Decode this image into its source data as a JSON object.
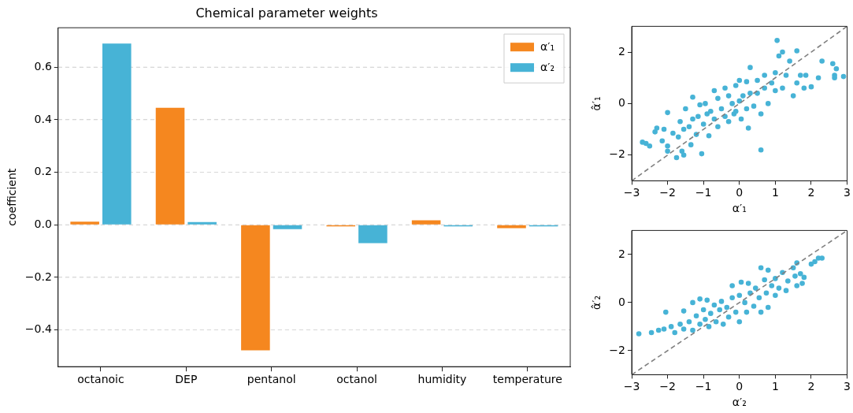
{
  "chart_data": [
    {
      "type": "bar",
      "title": "Chemical parameter weights",
      "ylabel": "coefficient",
      "categories": [
        "octanoic",
        "DEP",
        "pentanol",
        "octanol",
        "humidity",
        "temperature"
      ],
      "series": [
        {
          "name": "α′₁",
          "color": "#f5871f",
          "values": [
            0.012,
            0.445,
            -0.478,
            -0.002,
            0.017,
            -0.013
          ]
        },
        {
          "name": "α′₂",
          "color": "#47b3d6",
          "values": [
            0.69,
            0.01,
            -0.017,
            -0.07,
            -0.002,
            -0.005
          ]
        }
      ],
      "ylim": [
        -0.54,
        0.75
      ],
      "yticks": [
        {
          "value": -0.4,
          "label": "−0.4"
        },
        {
          "value": -0.2,
          "label": "−0.2"
        },
        {
          "value": 0,
          "label": "0.0"
        },
        {
          "value": 0.2,
          "label": "0.2"
        },
        {
          "value": 0.4,
          "label": "0.4"
        },
        {
          "value": 0.6,
          "label": "0.6"
        }
      ],
      "grid": "y",
      "legend": "top right"
    },
    {
      "type": "scatter",
      "xlabel": "α′₁",
      "ylabel": "α̂′₁",
      "marker": "circle",
      "series": [
        {
          "type": "scatter",
          "color": "#47b3d6",
          "x": [
            -2.7,
            -2.6,
            -2.5,
            -2.35,
            -2.3,
            -2.15,
            -2.1,
            -2.0,
            -2.0,
            -2.0,
            -1.85,
            -1.75,
            -1.7,
            -1.65,
            -1.6,
            -1.55,
            -1.55,
            -1.5,
            -1.4,
            -1.35,
            -1.3,
            -1.3,
            -1.2,
            -1.15,
            -1.1,
            -1.05,
            -1.0,
            -0.95,
            -0.9,
            -0.85,
            -0.8,
            -0.7,
            -0.7,
            -0.6,
            -0.6,
            -0.5,
            -0.4,
            -0.4,
            -0.3,
            -0.3,
            -0.2,
            -0.15,
            -0.1,
            -0.1,
            0.0,
            0.0,
            0.05,
            0.1,
            0.2,
            0.2,
            0.25,
            0.3,
            0.3,
            0.4,
            0.5,
            0.5,
            0.6,
            0.6,
            0.7,
            0.7,
            0.8,
            0.9,
            1.0,
            1.0,
            1.05,
            1.1,
            1.2,
            1.2,
            1.3,
            1.4,
            1.5,
            1.6,
            1.6,
            1.7,
            1.8,
            1.85,
            2.0,
            2.2,
            2.3,
            2.6,
            2.65,
            2.7,
            2.65,
            2.9
          ],
          "values": [
            -1.5,
            -1.55,
            -1.65,
            -1.1,
            -0.95,
            -1.45,
            -1.0,
            -0.35,
            -1.65,
            -1.85,
            -1.15,
            -2.1,
            -1.3,
            -0.7,
            -1.85,
            -2.0,
            -1.0,
            -0.2,
            -0.9,
            -1.6,
            0.25,
            -0.6,
            -1.2,
            -0.5,
            -0.05,
            -1.95,
            -0.8,
            0.0,
            -0.4,
            -1.25,
            -0.3,
            0.5,
            -0.6,
            0.2,
            -0.9,
            -0.2,
            0.6,
            -0.5,
            0.3,
            -0.7,
            0.0,
            -0.4,
            0.7,
            -0.3,
            0.9,
            0.1,
            -0.6,
            0.3,
            0.85,
            -0.2,
            -0.95,
            1.4,
            0.4,
            -0.1,
            0.9,
            0.4,
            -0.4,
            -1.8,
            1.1,
            0.6,
            0.0,
            0.8,
            1.2,
            0.5,
            2.45,
            1.85,
            2.0,
            0.6,
            1.1,
            1.65,
            0.3,
            2.05,
            0.8,
            1.1,
            0.6,
            1.1,
            0.65,
            1.0,
            1.65,
            1.55,
            1.1,
            1.35,
            1.0,
            1.05
          ]
        },
        {
          "type": "line",
          "color": "#808080",
          "line_style": "dashed",
          "marker": "none",
          "x": [
            -3,
            3
          ],
          "values": [
            -3,
            3
          ]
        }
      ],
      "xlim": [
        -3,
        3
      ],
      "ylim": [
        -3,
        3
      ],
      "xticks": [
        {
          "value": -3,
          "label": "−3"
        },
        {
          "value": -2,
          "label": "−2"
        },
        {
          "value": -1,
          "label": "−1"
        },
        {
          "value": 0,
          "label": "0"
        },
        1,
        2,
        3
      ],
      "yticks": [
        {
          "value": -2,
          "label": "−2"
        },
        {
          "value": 0,
          "label": "0"
        },
        2
      ],
      "grid": false
    },
    {
      "type": "scatter",
      "xlabel": "α′₂",
      "ylabel": "α̂′₂",
      "marker": "circle",
      "series": [
        {
          "type": "scatter",
          "color": "#47b3d6",
          "x": [
            -2.8,
            -2.45,
            -2.25,
            -2.1,
            -2.05,
            -1.9,
            -1.8,
            -1.65,
            -1.55,
            -1.55,
            -1.4,
            -1.3,
            -1.3,
            -1.2,
            -1.1,
            -1.1,
            -1.0,
            -0.95,
            -0.9,
            -0.85,
            -0.8,
            -0.7,
            -0.65,
            -0.55,
            -0.5,
            -0.45,
            -0.35,
            -0.3,
            -0.2,
            -0.2,
            -0.1,
            0.0,
            0.0,
            0.05,
            0.15,
            0.2,
            0.25,
            0.3,
            0.4,
            0.45,
            0.55,
            0.6,
            0.6,
            0.7,
            0.75,
            0.8,
            0.8,
            0.9,
            1.0,
            1.0,
            1.1,
            1.2,
            1.3,
            1.35,
            1.5,
            1.55,
            1.6,
            1.6,
            1.7,
            1.75,
            1.8,
            2.0,
            2.1,
            2.2,
            2.3
          ],
          "values": [
            -1.3,
            -1.25,
            -1.15,
            -1.1,
            -0.4,
            -1.0,
            -1.25,
            -0.9,
            -0.35,
            -1.1,
            -0.8,
            -1.15,
            0.0,
            -0.55,
            -0.9,
            0.15,
            -0.3,
            -0.7,
            0.1,
            -1.0,
            -0.45,
            -0.1,
            -0.8,
            -0.3,
            0.05,
            -0.9,
            -0.2,
            -0.6,
            0.2,
            0.7,
            -0.4,
            0.3,
            -0.8,
            0.85,
            0.0,
            -0.4,
            0.8,
            0.4,
            -0.15,
            0.6,
            0.2,
            1.45,
            -0.4,
            0.95,
            0.4,
            -0.2,
            1.35,
            0.7,
            0.3,
            1.0,
            0.6,
            1.25,
            0.5,
            0.9,
            1.45,
            1.1,
            1.65,
            0.7,
            1.2,
            0.8,
            1.05,
            1.6,
            1.7,
            1.85,
            1.85
          ]
        },
        {
          "type": "line",
          "color": "#808080",
          "line_style": "dashed",
          "marker": "none",
          "x": [
            -3,
            3
          ],
          "values": [
            -3,
            3
          ]
        }
      ],
      "xlim": [
        -3,
        3
      ],
      "ylim": [
        -3,
        3
      ],
      "xticks": [
        {
          "value": -3,
          "label": "−3"
        },
        {
          "value": -2,
          "label": "−2"
        },
        {
          "value": -1,
          "label": "−1"
        },
        {
          "value": 0,
          "label": "0"
        },
        1,
        2,
        3
      ],
      "yticks": [
        {
          "value": -2,
          "label": "−2"
        },
        {
          "value": 0,
          "label": "0"
        },
        2
      ],
      "grid": false
    }
  ]
}
